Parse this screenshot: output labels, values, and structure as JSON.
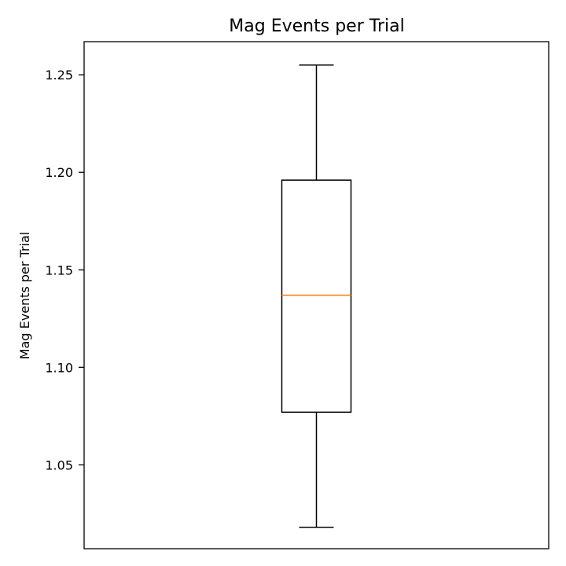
{
  "chart_data": {
    "type": "box",
    "title": "Mag Events per Trial",
    "xlabel": "",
    "ylabel": "Mag Events per Trial",
    "ylim": [
      1.007,
      1.267
    ],
    "yticks": [
      1.05,
      1.1,
      1.15,
      1.2,
      1.25
    ],
    "ytick_labels": [
      "1.05",
      "1.10",
      "1.15",
      "1.20",
      "1.25"
    ],
    "box": {
      "whisker_low": 1.018,
      "q1": 1.077,
      "median": 1.137,
      "q3": 1.196,
      "whisker_high": 1.255
    },
    "colors": {
      "box": "#000000",
      "median": "#ff7f0e"
    },
    "grid": false
  }
}
